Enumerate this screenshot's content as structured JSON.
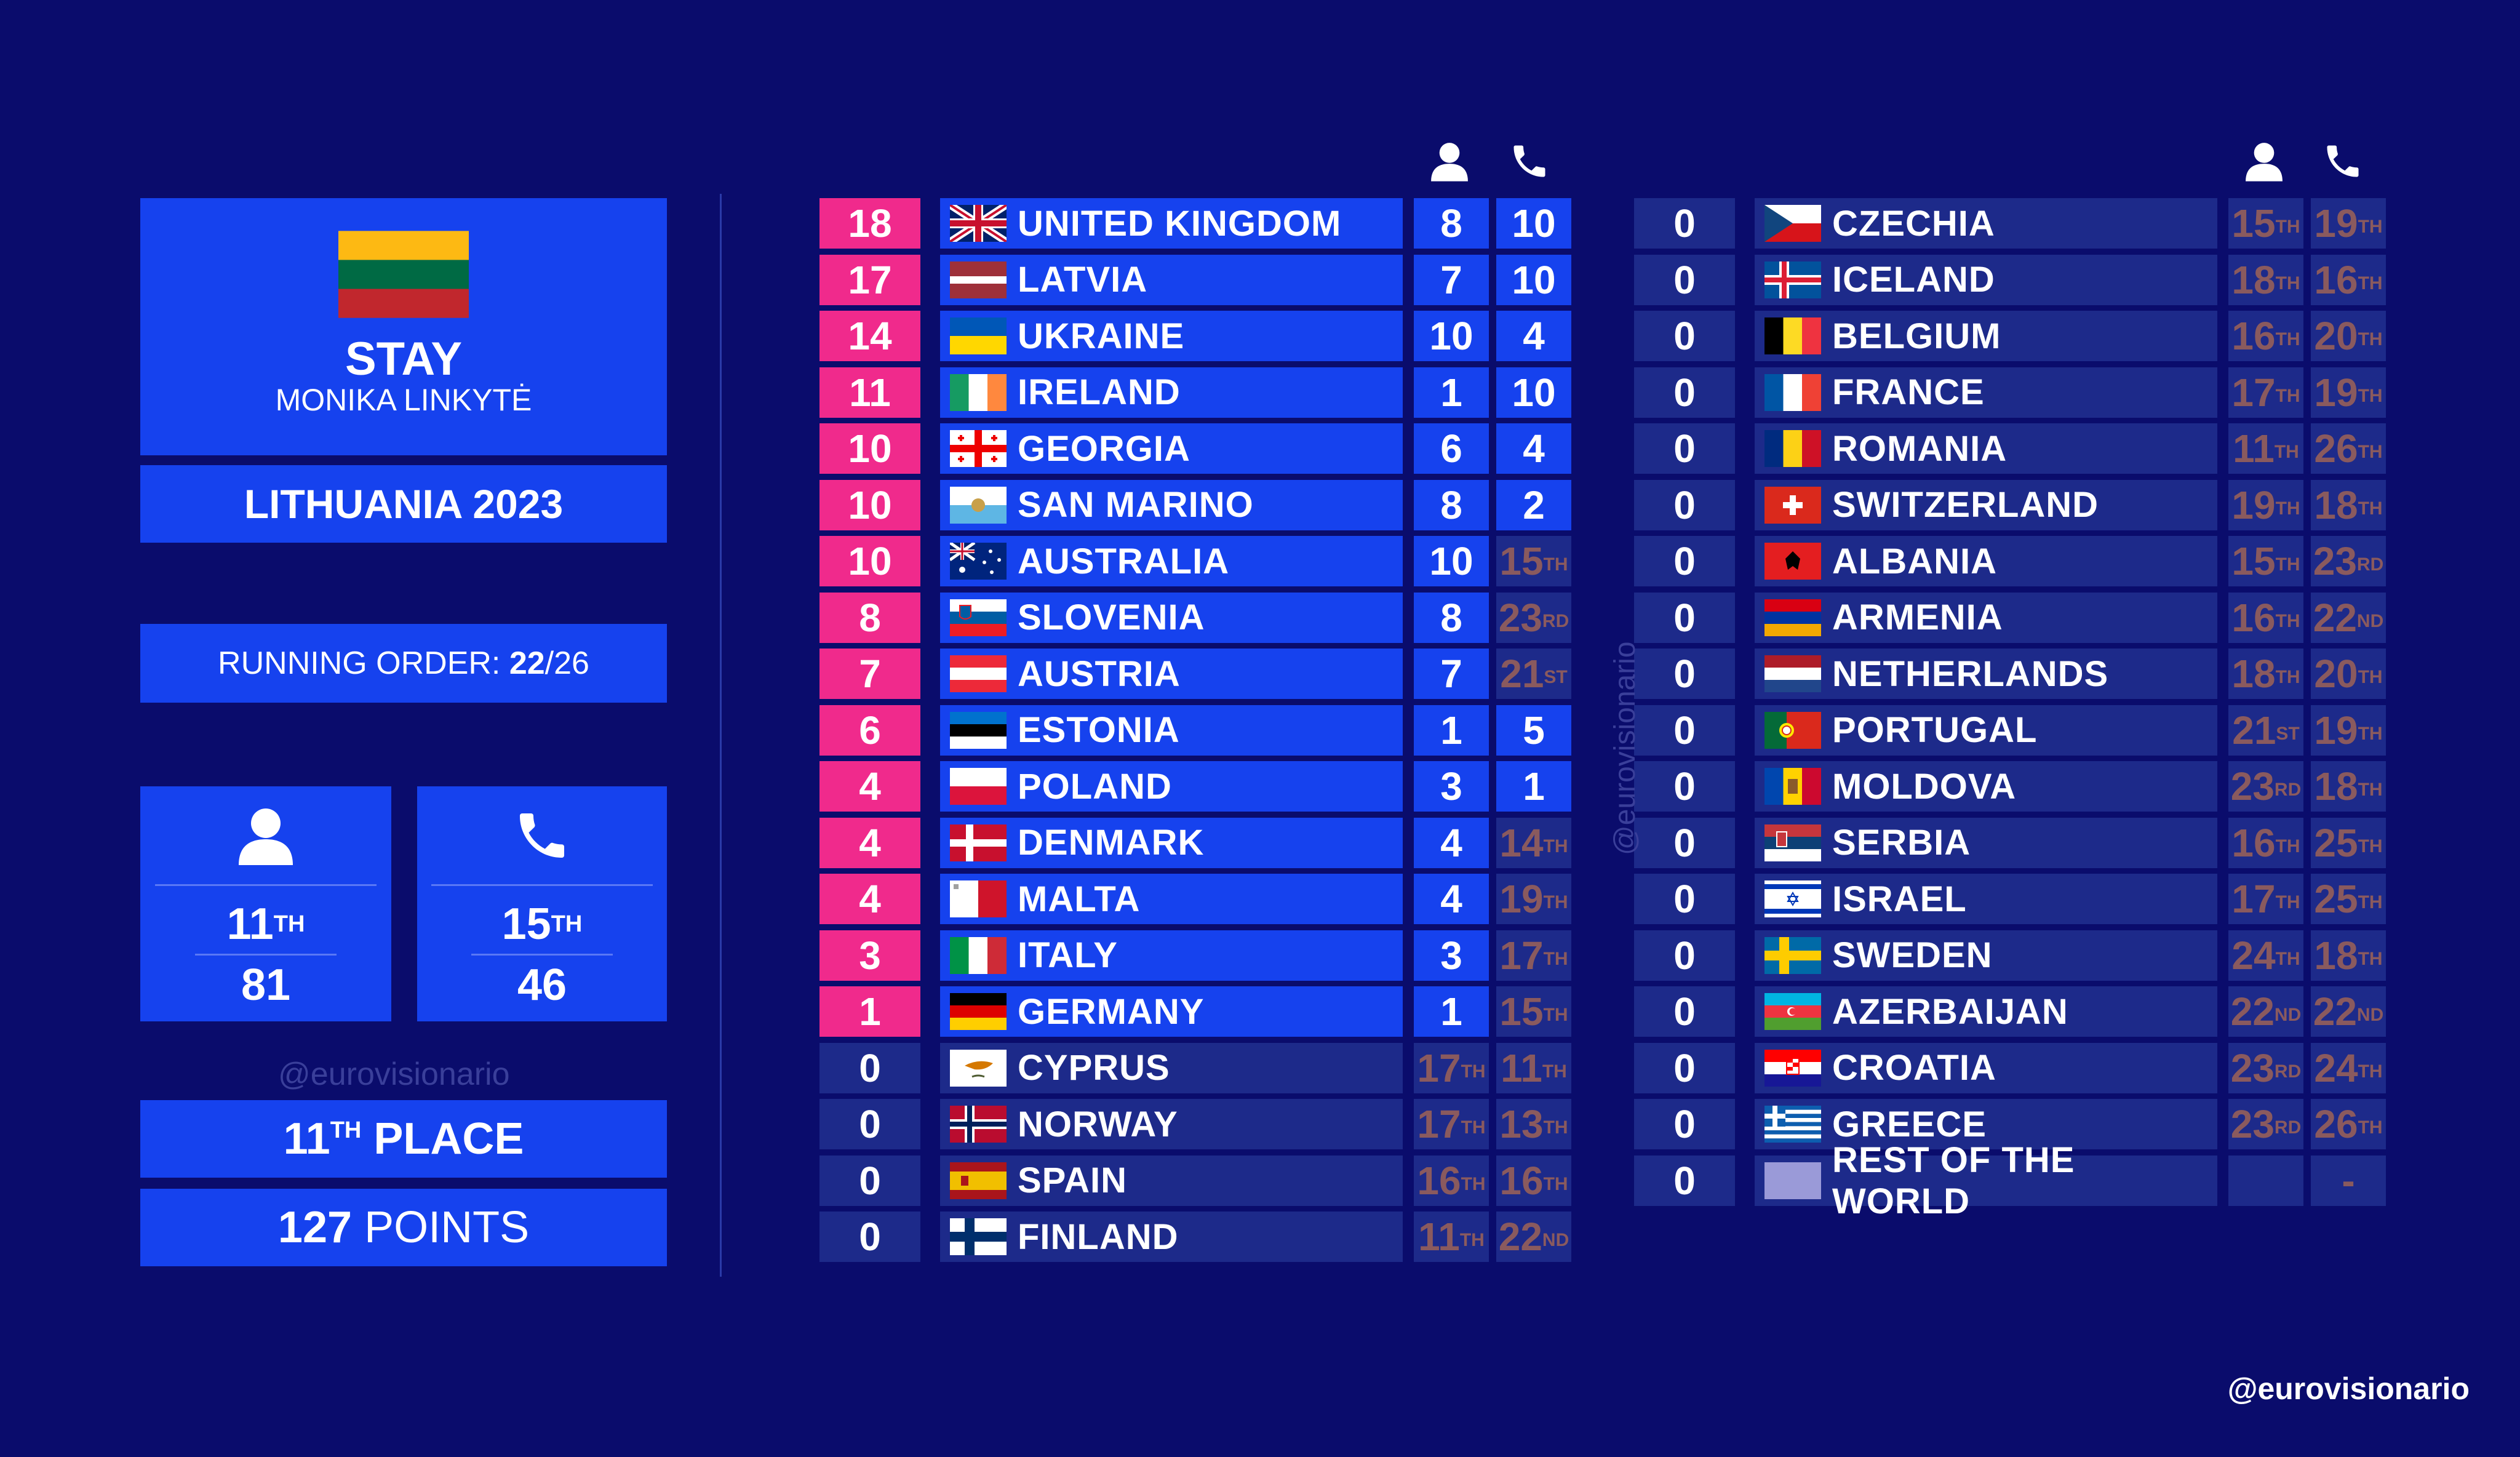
{
  "song": {
    "title": "STAY",
    "artist": "MONIKA LINKYTĖ",
    "country_year": "LITHUANIA 2023"
  },
  "running_order": {
    "label": "RUNNING ORDER:",
    "position": "22",
    "total": "/26"
  },
  "jury": {
    "icon": "person-icon",
    "rank_num": "11",
    "rank_sfx": "TH",
    "points": "81"
  },
  "televote": {
    "icon": "phone-icon",
    "rank_num": "15",
    "rank_sfx": "TH",
    "points": "46"
  },
  "watermark": "@eurovisionario",
  "place": {
    "num": "11",
    "sfx": "TH",
    "label": "PLACE"
  },
  "total_points": {
    "num": "127",
    "label": "POINTS"
  },
  "credit": "@eurovisionario",
  "colors": {
    "background": "#0a0c6c",
    "accent_blue": "#1642ee",
    "hot_pink": "#f02a8c",
    "dark_row": "#1d2a8a",
    "rank_muted": "#8a5a5e"
  },
  "left_rows": [
    {
      "points": "18",
      "country": "UNITED KINGDOM",
      "flag": "gb",
      "j": "8",
      "js": "",
      "t": "10",
      "ts": "",
      "jd": false,
      "td": false
    },
    {
      "points": "17",
      "country": "LATVIA",
      "flag": "lv",
      "j": "7",
      "js": "",
      "t": "10",
      "ts": "",
      "jd": false,
      "td": false
    },
    {
      "points": "14",
      "country": "UKRAINE",
      "flag": "ua",
      "j": "10",
      "js": "",
      "t": "4",
      "ts": "",
      "jd": false,
      "td": false
    },
    {
      "points": "11",
      "country": "IRELAND",
      "flag": "ie",
      "j": "1",
      "js": "",
      "t": "10",
      "ts": "",
      "jd": false,
      "td": false
    },
    {
      "points": "10",
      "country": "GEORGIA",
      "flag": "ge",
      "j": "6",
      "js": "",
      "t": "4",
      "ts": "",
      "jd": false,
      "td": false
    },
    {
      "points": "10",
      "country": "SAN MARINO",
      "flag": "sm",
      "j": "8",
      "js": "",
      "t": "2",
      "ts": "",
      "jd": false,
      "td": false
    },
    {
      "points": "10",
      "country": "AUSTRALIA",
      "flag": "au",
      "j": "10",
      "js": "",
      "t": "15",
      "ts": "TH",
      "jd": false,
      "td": true
    },
    {
      "points": "8",
      "country": "SLOVENIA",
      "flag": "si",
      "j": "8",
      "js": "",
      "t": "23",
      "ts": "RD",
      "jd": false,
      "td": true
    },
    {
      "points": "7",
      "country": "AUSTRIA",
      "flag": "at",
      "j": "7",
      "js": "",
      "t": "21",
      "ts": "ST",
      "jd": false,
      "td": true
    },
    {
      "points": "6",
      "country": "ESTONIA",
      "flag": "ee",
      "j": "1",
      "js": "",
      "t": "5",
      "ts": "",
      "jd": false,
      "td": false
    },
    {
      "points": "4",
      "country": "POLAND",
      "flag": "pl",
      "j": "3",
      "js": "",
      "t": "1",
      "ts": "",
      "jd": false,
      "td": false
    },
    {
      "points": "4",
      "country": "DENMARK",
      "flag": "dk",
      "j": "4",
      "js": "",
      "t": "14",
      "ts": "TH",
      "jd": false,
      "td": true
    },
    {
      "points": "4",
      "country": "MALTA",
      "flag": "mt",
      "j": "4",
      "js": "",
      "t": "19",
      "ts": "TH",
      "jd": false,
      "td": true
    },
    {
      "points": "3",
      "country": "ITALY",
      "flag": "it",
      "j": "3",
      "js": "",
      "t": "17",
      "ts": "TH",
      "jd": false,
      "td": true
    },
    {
      "points": "1",
      "country": "GERMANY",
      "flag": "de",
      "j": "1",
      "js": "",
      "t": "15",
      "ts": "TH",
      "jd": false,
      "td": true
    },
    {
      "points": "0",
      "country": "CYPRUS",
      "flag": "cy",
      "j": "17",
      "js": "TH",
      "t": "11",
      "ts": "TH",
      "jd": true,
      "td": true
    },
    {
      "points": "0",
      "country": "NORWAY",
      "flag": "no",
      "j": "17",
      "js": "TH",
      "t": "13",
      "ts": "TH",
      "jd": true,
      "td": true
    },
    {
      "points": "0",
      "country": "SPAIN",
      "flag": "es",
      "j": "16",
      "js": "TH",
      "t": "16",
      "ts": "TH",
      "jd": true,
      "td": true
    },
    {
      "points": "0",
      "country": "FINLAND",
      "flag": "fi",
      "j": "11",
      "js": "TH",
      "t": "22",
      "ts": "ND",
      "jd": true,
      "td": true
    }
  ],
  "right_rows": [
    {
      "points": "0",
      "country": "CZECHIA",
      "flag": "cz",
      "j": "15",
      "js": "TH",
      "t": "19",
      "ts": "TH"
    },
    {
      "points": "0",
      "country": "ICELAND",
      "flag": "is",
      "j": "18",
      "js": "TH",
      "t": "16",
      "ts": "TH"
    },
    {
      "points": "0",
      "country": "BELGIUM",
      "flag": "be",
      "j": "16",
      "js": "TH",
      "t": "20",
      "ts": "TH"
    },
    {
      "points": "0",
      "country": "FRANCE",
      "flag": "fr",
      "j": "17",
      "js": "TH",
      "t": "19",
      "ts": "TH"
    },
    {
      "points": "0",
      "country": "ROMANIA",
      "flag": "ro",
      "j": "11",
      "js": "TH",
      "t": "26",
      "ts": "TH"
    },
    {
      "points": "0",
      "country": "SWITZERLAND",
      "flag": "ch",
      "j": "19",
      "js": "TH",
      "t": "18",
      "ts": "TH"
    },
    {
      "points": "0",
      "country": "ALBANIA",
      "flag": "al",
      "j": "15",
      "js": "TH",
      "t": "23",
      "ts": "RD"
    },
    {
      "points": "0",
      "country": "ARMENIA",
      "flag": "am",
      "j": "16",
      "js": "TH",
      "t": "22",
      "ts": "ND"
    },
    {
      "points": "0",
      "country": "NETHERLANDS",
      "flag": "nl",
      "j": "18",
      "js": "TH",
      "t": "20",
      "ts": "TH"
    },
    {
      "points": "0",
      "country": "PORTUGAL",
      "flag": "pt",
      "j": "21",
      "js": "ST",
      "t": "19",
      "ts": "TH"
    },
    {
      "points": "0",
      "country": "MOLDOVA",
      "flag": "md",
      "j": "23",
      "js": "RD",
      "t": "18",
      "ts": "TH"
    },
    {
      "points": "0",
      "country": "SERBIA",
      "flag": "rs",
      "j": "16",
      "js": "TH",
      "t": "25",
      "ts": "TH"
    },
    {
      "points": "0",
      "country": "ISRAEL",
      "flag": "il",
      "j": "17",
      "js": "TH",
      "t": "25",
      "ts": "TH"
    },
    {
      "points": "0",
      "country": "SWEDEN",
      "flag": "se",
      "j": "24",
      "js": "TH",
      "t": "18",
      "ts": "TH"
    },
    {
      "points": "0",
      "country": "AZERBAIJAN",
      "flag": "az",
      "j": "22",
      "js": "ND",
      "t": "22",
      "ts": "ND"
    },
    {
      "points": "0",
      "country": "CROATIA",
      "flag": "hr",
      "j": "23",
      "js": "RD",
      "t": "24",
      "ts": "TH"
    },
    {
      "points": "0",
      "country": "GREECE",
      "flag": "gr",
      "j": "23",
      "js": "RD",
      "t": "26",
      "ts": "TH"
    },
    {
      "points": "0",
      "country": "REST OF THE WORLD",
      "flag": "world",
      "j": "",
      "js": "",
      "t": "-",
      "ts": ""
    }
  ]
}
